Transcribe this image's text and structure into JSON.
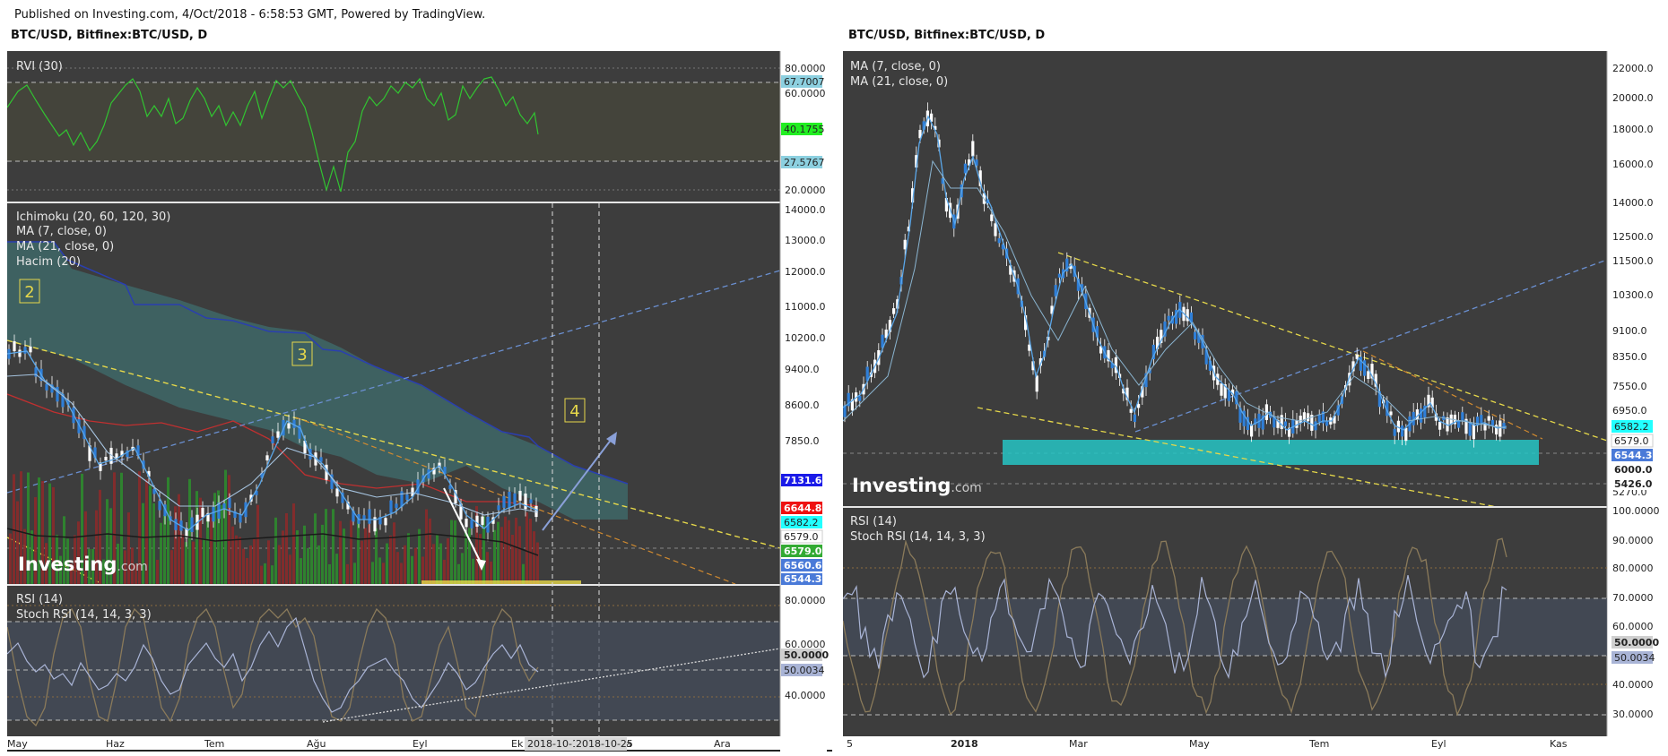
{
  "header": {
    "published": "Published on Investing.com, 4/Oct/2018 - 6:58:53 GMT, Powered by TradingView."
  },
  "left": {
    "title": "BTC/USD, Bitfinex:BTC/USD, D",
    "rvi": {
      "label": "RVI (30)",
      "ticks": [
        "80.0000",
        "60.0000",
        "20.0000"
      ],
      "tags": [
        "67.7007",
        "40.1755",
        "27.5767"
      ]
    },
    "main": {
      "labels": [
        "Ichimoku (20, 60, 120, 30)",
        "MA (7, close, 0)",
        "MA (21, close, 0)",
        "Hacim (20)"
      ],
      "ticks": [
        "14000.0",
        "13000.0",
        "12000.0",
        "11000.0",
        "10200.0",
        "9400.0",
        "8600.0",
        "7850.0"
      ],
      "tags": [
        "7131.6",
        "6644.8",
        "6582.2",
        "6579.0",
        "6579.0",
        "6560.6",
        "6544.3"
      ],
      "wave_labels": [
        "2",
        "3",
        "4"
      ],
      "logo": "Investing",
      "logo_suffix": ".com"
    },
    "rsi": {
      "labels": [
        "RSI (14)",
        "Stoch RSI (14, 14, 3, 3)"
      ],
      "ticks": [
        "80.0000",
        "60.0000",
        "40.0000"
      ],
      "tags": [
        "50.0000",
        "50.0034"
      ]
    },
    "xaxis": [
      "May",
      "Haz",
      "Tem",
      "Ağu",
      "Eyl",
      "Ek",
      "a",
      "Ara"
    ],
    "date_tags": [
      "2018-10-1",
      "2018-10-25"
    ]
  },
  "right": {
    "title": "BTC/USD, Bitfinex:BTC/USD, D",
    "main": {
      "labels": [
        "MA (7, close, 0)",
        "MA (21, close, 0)"
      ],
      "ticks": [
        "22000.0",
        "20000.0",
        "18000.0",
        "16000.0",
        "14000.0",
        "12500.0",
        "11500.0",
        "10300.0",
        "9100.0",
        "8350.0",
        "7550.0",
        "6950.0",
        "5270.0"
      ],
      "tags": [
        "6582.2",
        "6579.0",
        "6544.3",
        "6000.0",
        "5426.0"
      ],
      "logo": "Investing",
      "logo_suffix": ".com"
    },
    "rsi": {
      "labels": [
        "RSI (14)",
        "Stoch RSI (14, 14, 3, 3)"
      ],
      "ticks": [
        "100.0000",
        "90.0000",
        "80.0000",
        "70.0000",
        "60.0000",
        "40.0000",
        "30.0000"
      ],
      "tags": [
        "50.0000",
        "50.0034"
      ]
    },
    "xaxis": [
      "5",
      "2018",
      "Mar",
      "May",
      "Tem",
      "Eyl",
      "Kas"
    ]
  },
  "chart_data": [
    {
      "type": "line",
      "title": "BTC/USD, Bitfinex:BTC/USD, D",
      "x": [
        "May",
        "Haz",
        "Tem",
        "Ağu",
        "Eyl",
        "Ek"
      ],
      "series": [
        {
          "name": "RVI (30)",
          "values": [
            62,
            55,
            66,
            25,
            64,
            48
          ]
        },
        {
          "name": "MA (7, close, 0)",
          "values": [
            9200,
            6800,
            6500,
            7900,
            6700,
            6582
          ]
        },
        {
          "name": "RSI (14)",
          "values": [
            58,
            44,
            52,
            62,
            42,
            50
          ]
        }
      ],
      "ylim": [
        5800,
        14000
      ]
    },
    {
      "type": "line",
      "title": "BTC/USD, Bitfinex:BTC/USD, D",
      "x": [
        "5",
        "2018",
        "Mar",
        "May",
        "Tem",
        "Eyl",
        "Kas"
      ],
      "series": [
        {
          "name": "MA (7, close, 0)",
          "values": [
            6300,
            17500,
            10200,
            9100,
            6400,
            6600,
            6582
          ]
        },
        {
          "name": "RSI (14)",
          "values": [
            55,
            72,
            38,
            66,
            45,
            58,
            50
          ]
        }
      ],
      "ylim": [
        5270,
        22000
      ]
    }
  ]
}
